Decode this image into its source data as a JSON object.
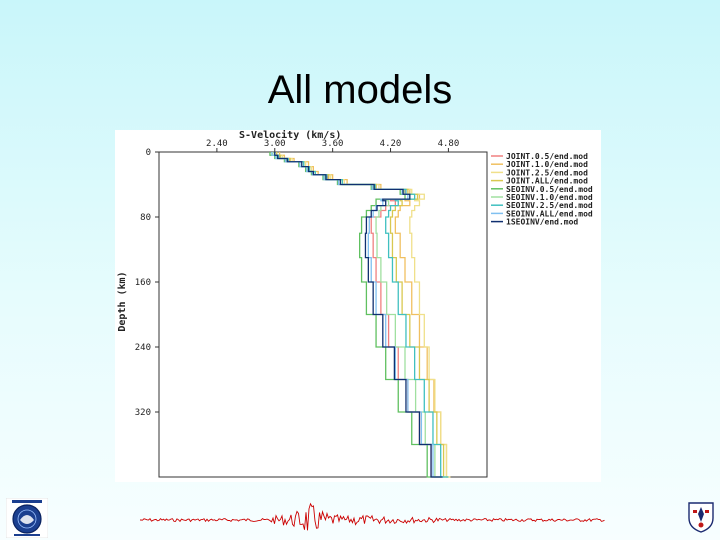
{
  "slide": {
    "title": "All models"
  },
  "colors": {
    "line_colors": [
      "#f08080",
      "#f0c060",
      "#f0e08a",
      "#d8c850",
      "#60c060",
      "#a0e0a0",
      "#40c0c0",
      "#80c0f0",
      "#103070"
    ],
    "trace": "#cc0000"
  },
  "logos": {
    "left": "university-seal",
    "right": "crest"
  },
  "chart_data": {
    "type": "line",
    "title": "",
    "xlabel": "S-Velocity (km/s)",
    "ylabel": "Depth (km)",
    "xlim": [
      1.8,
      5.2
    ],
    "ylim": [
      0,
      400
    ],
    "x_inverted_axis_position": "top",
    "y_inverted": true,
    "xticks": [
      "2.40",
      "3.00",
      "3.60",
      "4.20",
      "4.80"
    ],
    "xtick_values": [
      2.4,
      3.0,
      3.6,
      4.2,
      4.8
    ],
    "yticks": [
      "0",
      "80",
      "160",
      "240",
      "320"
    ],
    "ytick_values": [
      0,
      80,
      160,
      240,
      320
    ],
    "legend_position": "right",
    "series": [
      {
        "name": "JOINT.0.5/end.mod",
        "depth": [
          0,
          4,
          8,
          12,
          18,
          24,
          28,
          34,
          40,
          46,
          52,
          58,
          60,
          66,
          72,
          80,
          100,
          130,
          160,
          200,
          240,
          280,
          320,
          360,
          400
        ],
        "velocity": [
          3.0,
          3.05,
          3.15,
          3.3,
          3.35,
          3.4,
          3.55,
          3.7,
          4.05,
          4.35,
          4.4,
          4.2,
          4.25,
          4.15,
          4.1,
          4.0,
          4.02,
          4.05,
          4.1,
          4.18,
          4.28,
          4.38,
          4.5,
          4.62,
          4.72
        ]
      },
      {
        "name": "JOINT.1.0/end.mod",
        "depth": [
          0,
          4,
          8,
          12,
          18,
          24,
          28,
          34,
          40,
          46,
          52,
          58,
          60,
          66,
          72,
          80,
          100,
          130,
          160,
          200,
          240,
          280,
          320,
          360,
          400
        ],
        "velocity": [
          3.05,
          3.1,
          3.2,
          3.35,
          3.4,
          3.45,
          3.6,
          3.75,
          4.1,
          4.4,
          4.5,
          4.35,
          4.4,
          4.3,
          4.28,
          4.25,
          4.3,
          4.35,
          4.42,
          4.5,
          4.58,
          4.65,
          4.72,
          4.78,
          4.82
        ]
      },
      {
        "name": "JOINT.2.5/end.mod",
        "depth": [
          0,
          4,
          8,
          12,
          18,
          24,
          28,
          34,
          40,
          46,
          52,
          58,
          60,
          66,
          72,
          80,
          100,
          130,
          160,
          200,
          240,
          280,
          320,
          360,
          400
        ],
        "velocity": [
          3.0,
          3.08,
          3.18,
          3.32,
          3.38,
          3.42,
          3.58,
          3.72,
          4.08,
          4.42,
          4.55,
          4.45,
          4.5,
          4.45,
          4.42,
          4.4,
          4.42,
          4.45,
          4.5,
          4.55,
          4.6,
          4.66,
          4.72,
          4.78,
          4.82
        ]
      },
      {
        "name": "JOINT.ALL/end.mod",
        "depth": [
          0,
          4,
          8,
          12,
          18,
          24,
          28,
          34,
          40,
          46,
          52,
          58,
          60,
          66,
          72,
          80,
          100,
          130,
          160,
          200,
          240,
          280,
          320,
          360,
          400
        ],
        "velocity": [
          3.02,
          3.06,
          3.16,
          3.3,
          3.36,
          3.42,
          3.56,
          3.7,
          4.05,
          4.38,
          4.48,
          4.3,
          4.32,
          4.25,
          4.22,
          4.2,
          4.22,
          4.26,
          4.32,
          4.4,
          4.5,
          4.6,
          4.68,
          4.75,
          4.8
        ]
      },
      {
        "name": "SEOINV.0.5/end.mod",
        "depth": [
          0,
          4,
          8,
          12,
          18,
          24,
          28,
          34,
          40,
          46,
          52,
          58,
          60,
          66,
          72,
          80,
          100,
          130,
          160,
          200,
          240,
          280,
          320,
          360,
          400
        ],
        "velocity": [
          2.95,
          3.0,
          3.1,
          3.25,
          3.32,
          3.38,
          3.5,
          3.65,
          4.0,
          4.3,
          4.35,
          4.05,
          4.05,
          4.0,
          3.95,
          3.9,
          3.88,
          3.9,
          3.95,
          4.05,
          4.15,
          4.28,
          4.42,
          4.58,
          4.72
        ]
      },
      {
        "name": "SEOINV.1.0/end.mod",
        "depth": [
          0,
          4,
          8,
          12,
          18,
          24,
          28,
          34,
          40,
          46,
          52,
          58,
          60,
          66,
          72,
          80,
          100,
          130,
          160,
          200,
          240,
          280,
          320,
          360,
          400
        ],
        "velocity": [
          2.98,
          3.02,
          3.12,
          3.28,
          3.34,
          3.4,
          3.52,
          3.68,
          4.02,
          4.34,
          4.4,
          4.15,
          4.18,
          4.1,
          4.08,
          4.05,
          4.06,
          4.1,
          4.16,
          4.25,
          4.35,
          4.46,
          4.56,
          4.66,
          4.76
        ]
      },
      {
        "name": "SEOINV.2.5/end.mod",
        "depth": [
          0,
          4,
          8,
          12,
          18,
          24,
          28,
          34,
          40,
          46,
          52,
          58,
          60,
          66,
          72,
          80,
          100,
          130,
          160,
          200,
          240,
          280,
          320,
          360,
          400
        ],
        "velocity": [
          3.0,
          3.04,
          3.14,
          3.3,
          3.36,
          3.42,
          3.54,
          3.7,
          4.04,
          4.36,
          4.45,
          4.25,
          4.28,
          4.2,
          4.18,
          4.15,
          4.18,
          4.22,
          4.28,
          4.36,
          4.45,
          4.55,
          4.64,
          4.72,
          4.8
        ]
      },
      {
        "name": "SEOINV.ALL/end.mod",
        "depth": [
          0,
          4,
          8,
          12,
          18,
          24,
          28,
          34,
          40,
          46,
          52,
          58,
          60,
          66,
          72,
          80,
          100,
          130,
          160,
          200,
          240,
          280,
          320,
          360,
          400
        ],
        "velocity": [
          2.97,
          3.01,
          3.11,
          3.26,
          3.33,
          3.39,
          3.51,
          3.66,
          4.01,
          4.32,
          4.38,
          4.1,
          4.12,
          4.05,
          4.02,
          3.98,
          3.97,
          4.0,
          4.05,
          4.15,
          4.25,
          4.38,
          4.52,
          4.64,
          4.74
        ]
      },
      {
        "name": "1SEOINV/end.mod",
        "depth": [
          0,
          4,
          8,
          12,
          18,
          24,
          28,
          34,
          40,
          46,
          52,
          58,
          60,
          66,
          72,
          80,
          100,
          130,
          160,
          200,
          240,
          280,
          320,
          360,
          400
        ],
        "velocity": [
          3.0,
          3.03,
          3.13,
          3.28,
          3.35,
          3.4,
          3.53,
          3.68,
          4.03,
          4.33,
          4.4,
          4.12,
          4.15,
          4.06,
          4.0,
          3.95,
          3.94,
          3.97,
          4.02,
          4.12,
          4.24,
          4.36,
          4.5,
          4.62,
          4.74
        ]
      }
    ]
  }
}
